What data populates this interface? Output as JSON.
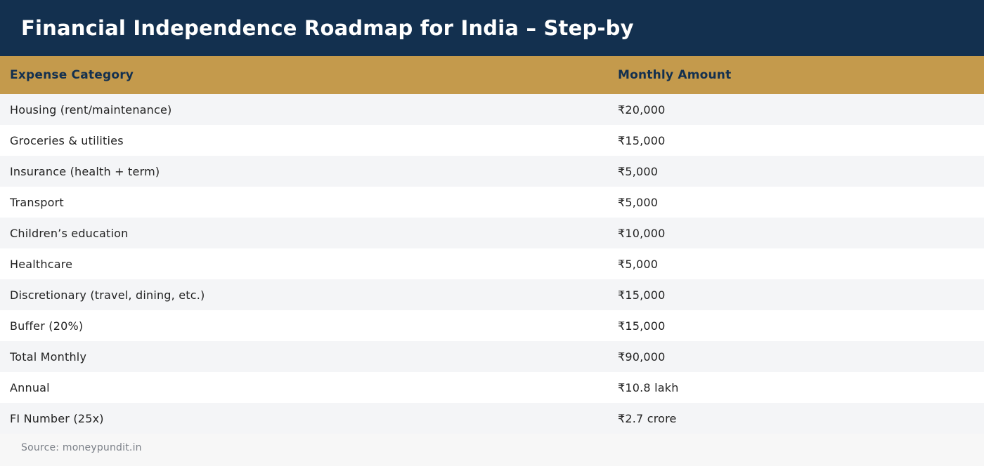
{
  "header": {
    "title": "Financial Independence Roadmap for India – Step-by"
  },
  "table": {
    "columns": [
      "Expense Category",
      "Monthly Amount"
    ],
    "rows": [
      [
        "Housing (rent/maintenance)",
        "₹20,000"
      ],
      [
        "Groceries & utilities",
        "₹15,000"
      ],
      [
        "Insurance (health + term)",
        "₹5,000"
      ],
      [
        "Transport",
        "₹5,000"
      ],
      [
        "Children’s education",
        "₹10,000"
      ],
      [
        "Healthcare",
        "₹5,000"
      ],
      [
        "Discretionary (travel, dining, etc.)",
        "₹15,000"
      ],
      [
        "Buffer (20%)",
        "₹15,000"
      ],
      [
        "Total Monthly",
        "₹90,000"
      ],
      [
        "Annual",
        "₹10.8 lakh"
      ],
      [
        "FI Number (25x)",
        "₹2.7 crore"
      ]
    ]
  },
  "footer": {
    "source": "Source: moneypundit.in"
  },
  "colors": {
    "title_bg": "#13304f",
    "header_bg": "#c49a4c",
    "row_alt": "#f4f5f7",
    "row": "#ffffff"
  }
}
